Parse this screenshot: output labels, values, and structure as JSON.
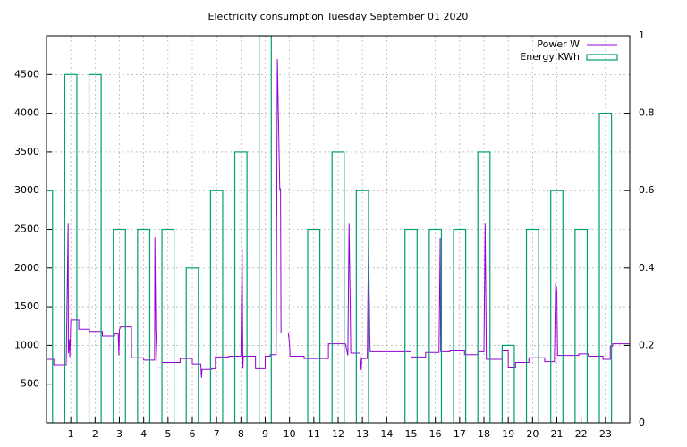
{
  "chart_data": {
    "type": "line",
    "title": "Electricity consumption Tuesday September 01 2020",
    "xlim": [
      0,
      24
    ],
    "xticks": [
      1,
      2,
      3,
      4,
      5,
      6,
      7,
      8,
      9,
      10,
      11,
      12,
      13,
      14,
      15,
      16,
      17,
      18,
      19,
      20,
      21,
      22,
      23
    ],
    "ylim": [
      0,
      5000
    ],
    "yticks": [
      500,
      1000,
      1500,
      2000,
      2500,
      3000,
      3500,
      4000,
      4500
    ],
    "y2lim": [
      0,
      1
    ],
    "y2ticks": [
      0,
      0.2,
      0.4,
      0.6,
      0.8,
      1
    ],
    "grid": true,
    "legend": "top-right",
    "series": [
      {
        "name": "Power W",
        "color": "#9400d3",
        "x": [
          0,
          0.3,
          0.3,
          0.81,
          0.89,
          0.9,
          0.93,
          0.96,
          1.0,
          1.33,
          1.33,
          1.77,
          1.77,
          2.3,
          2.3,
          2.8,
          2.8,
          2.95,
          2.98,
          3.0,
          3.05,
          3.5,
          3.5,
          4.0,
          4.0,
          4.45,
          4.46,
          4.5,
          4.55,
          4.75,
          4.75,
          5.5,
          5.5,
          6.0,
          6.0,
          6.35,
          6.38,
          6.4,
          6.8,
          6.8,
          6.95,
          6.95,
          7.5,
          7.5,
          8.0,
          8.05,
          8.08,
          8.1,
          8.6,
          8.6,
          9.0,
          9.0,
          9.2,
          9.2,
          9.45,
          9.5,
          9.6,
          9.63,
          9.65,
          9.95,
          10.0,
          10.02,
          10.6,
          10.6,
          11.6,
          11.6,
          12.3,
          12.4,
          12.45,
          12.5,
          12.52,
          12.9,
          12.95,
          12.97,
          13.2,
          13.25,
          13.3,
          13.32,
          15.0,
          15.0,
          15.6,
          15.6,
          16.15,
          16.2,
          16.22,
          16.6,
          16.6,
          17.2,
          17.2,
          17.75,
          17.75,
          18.0,
          18.05,
          18.1,
          18.75,
          18.75,
          19.0,
          19.0,
          19.3,
          19.3,
          19.85,
          19.85,
          20.5,
          20.5,
          20.9,
          20.95,
          21.0,
          21.03,
          21.9,
          21.9,
          22.3,
          22.3,
          22.9,
          22.9,
          23.2,
          23.2,
          23.3,
          23.3,
          24
        ],
        "values": [
          820,
          820,
          750,
          750,
          2570,
          900,
          1080,
          850,
          1330,
          1330,
          1210,
          1210,
          1180,
          1180,
          1120,
          1120,
          1150,
          1150,
          870,
          1200,
          1240,
          1240,
          840,
          840,
          810,
          810,
          2400,
          1200,
          720,
          720,
          780,
          780,
          830,
          830,
          760,
          760,
          580,
          690,
          690,
          700,
          700,
          850,
          850,
          860,
          860,
          2250,
          700,
          860,
          860,
          700,
          700,
          860,
          860,
          880,
          880,
          4700,
          3000,
          3030,
          1160,
          1160,
          1020,
          860,
          860,
          830,
          830,
          1020,
          1020,
          870,
          2570,
          1440,
          900,
          900,
          680,
          830,
          830,
          2390,
          1160,
          920,
          920,
          850,
          850,
          910,
          910,
          2390,
          920,
          920,
          930,
          930,
          880,
          880,
          920,
          920,
          2570,
          820,
          820,
          930,
          930,
          710,
          710,
          780,
          780,
          840,
          840,
          790,
          790,
          1800,
          1700,
          870,
          870,
          890,
          890,
          860,
          860,
          820,
          820,
          990,
          990,
          1020,
          1020
        ]
      },
      {
        "name": "Energy KWh",
        "color": "#009e73",
        "axis": "y2",
        "x": [
          0,
          1,
          2,
          3,
          4,
          5,
          6,
          7,
          8,
          9,
          10,
          11,
          12,
          13,
          14,
          15,
          16,
          17,
          18,
          19,
          20,
          21,
          22,
          23
        ],
        "values": [
          0.6,
          0.9,
          0.9,
          0.5,
          0.5,
          0.5,
          0.4,
          0.6,
          0.7,
          1,
          0,
          0.5,
          0.7,
          0.6,
          0,
          0.5,
          0.5,
          0.5,
          0.7,
          0.2,
          0.5,
          0.6,
          0.5,
          0.8
        ]
      }
    ]
  }
}
